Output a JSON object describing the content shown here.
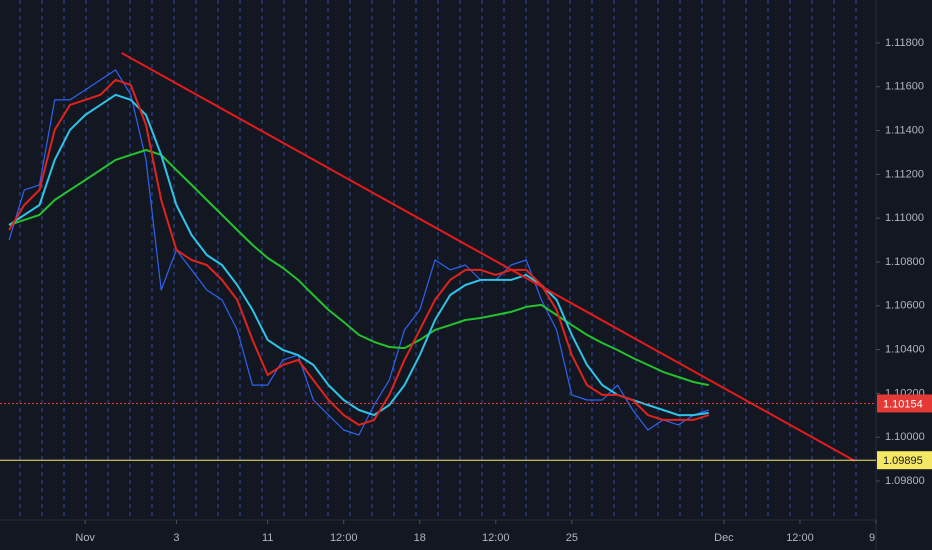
{
  "chart_data": {
    "type": "line",
    "x": [
      -2.5,
      -2,
      -1.5,
      -1,
      -0.5,
      0,
      0.5,
      1,
      1.5,
      2,
      2.5,
      3,
      3.5,
      4,
      4.5,
      5,
      5.5,
      6,
      6.5,
      7,
      7.5,
      8,
      8.5,
      9,
      9.5,
      10,
      10.5,
      11,
      11.5,
      12,
      12.5,
      13,
      13.5,
      14,
      14.5,
      15,
      15.5,
      16,
      16.5,
      17,
      17.5,
      18,
      18.5,
      19,
      19.5,
      20,
      20.5
    ],
    "series": [
      {
        "color": "#2f62f0",
        "values": [
          1.109,
          1.11129,
          1.11152,
          1.1154,
          1.1154,
          1.11585,
          1.11631,
          1.11677,
          1.11563,
          1.11266,
          1.10672,
          1.10855,
          1.10764,
          1.10672,
          1.10627,
          1.1049,
          1.10238,
          1.10238,
          1.10353,
          1.10375,
          1.1017,
          1.10101,
          1.10033,
          1.1001,
          1.10147,
          1.10261,
          1.1049,
          1.10581,
          1.10809,
          1.10764,
          1.10786,
          1.10718,
          1.10718,
          1.10786,
          1.10809,
          1.10627,
          1.1049,
          1.10193,
          1.1017,
          1.1017,
          1.10238,
          1.10124,
          1.10033,
          1.10079,
          1.10056,
          1.10101,
          1.10124
        ]
      },
      {
        "color": "#25c12e",
        "values": [
          1.10969,
          1.10992,
          1.11015,
          1.11083,
          1.11129,
          1.11174,
          1.1122,
          1.11266,
          1.11289,
          1.11311,
          1.11289,
          1.1122,
          1.11152,
          1.11083,
          1.11015,
          1.10946,
          1.10878,
          1.10818,
          1.10773,
          1.10718,
          1.10649,
          1.10581,
          1.10526,
          1.10467,
          1.10435,
          1.10412,
          1.10407,
          1.10444,
          1.1049,
          1.10512,
          1.10535,
          1.10544,
          1.10558,
          1.10572,
          1.10595,
          1.10604,
          1.10558,
          1.10512,
          1.10467,
          1.1043,
          1.10398,
          1.10362,
          1.1033,
          1.10298,
          1.10275,
          1.10252,
          1.10238
        ]
      },
      {
        "color": "#2ec4e8",
        "values": [
          1.10969,
          1.11015,
          1.1106,
          1.11266,
          1.11403,
          1.11471,
          1.11517,
          1.11563,
          1.1154,
          1.11471,
          1.11289,
          1.1106,
          1.10923,
          1.10832,
          1.10786,
          1.10695,
          1.10581,
          1.10444,
          1.10398,
          1.10375,
          1.1033,
          1.10238,
          1.1017,
          1.10124,
          1.10101,
          1.10147,
          1.10238,
          1.10375,
          1.10535,
          1.10649,
          1.10695,
          1.10718,
          1.10718,
          1.10718,
          1.10741,
          1.10695,
          1.10627,
          1.10467,
          1.1033,
          1.10238,
          1.10193,
          1.1017,
          1.10147,
          1.10124,
          1.10101,
          1.10101,
          1.10111
        ]
      },
      {
        "color": "#e0231c",
        "values": [
          1.10946,
          1.1106,
          1.11129,
          1.11403,
          1.11517,
          1.1154,
          1.11563,
          1.11631,
          1.11608,
          1.11426,
          1.11083,
          1.10855,
          1.10809,
          1.10786,
          1.10718,
          1.10627,
          1.10444,
          1.10284,
          1.1033,
          1.10353,
          1.10261,
          1.1017,
          1.10101,
          1.10056,
          1.10079,
          1.10193,
          1.10353,
          1.1049,
          1.10627,
          1.10718,
          1.10764,
          1.10764,
          1.10741,
          1.10764,
          1.10764,
          1.10695,
          1.10581,
          1.10375,
          1.10238,
          1.10193,
          1.10193,
          1.1017,
          1.10101,
          1.10079,
          1.10079,
          1.10079,
          1.10101
        ]
      }
    ],
    "trendline": {
      "x": [
        1.2,
        25.3
      ],
      "values": [
        1.11754,
        1.09892
      ],
      "color": "#e31b1b"
    },
    "price_lines": [
      {
        "value": 1.10154,
        "color": "#e53935",
        "style": "dotted"
      },
      {
        "value": 1.09895,
        "color": "#f5e663",
        "style": "solid"
      }
    ],
    "xlim": [
      -2.8,
      26
    ],
    "xticks": [
      {
        "value": 0,
        "label": "Nov"
      },
      3,
      {
        "value": 6,
        "label": "11"
      },
      {
        "value": 8.5,
        "label": "12:00"
      },
      {
        "value": 11,
        "label": "18"
      },
      {
        "value": 13.5,
        "label": "12:00"
      },
      {
        "value": 16,
        "label": "25"
      },
      {
        "value": 21,
        "label": "Dec"
      },
      {
        "value": 23.5,
        "label": "12:00"
      },
      {
        "value": 26,
        "label": "9"
      }
    ],
    "ylim": [
      1.09622,
      1.11996
    ],
    "yticks": [
      {
        "value": 1.098,
        "label": "1.09800"
      },
      {
        "value": 1.1,
        "label": "1.10000"
      },
      {
        "value": 1.102,
        "label": "1.10200"
      },
      {
        "value": 1.104,
        "label": "1.10400"
      },
      {
        "value": 1.106,
        "label": "1.10600"
      },
      {
        "value": 1.108,
        "label": "1.10800"
      },
      {
        "value": 1.11,
        "label": "1.11000"
      },
      {
        "value": 1.112,
        "label": "1.11200"
      },
      {
        "value": 1.114,
        "label": "1.11400"
      },
      {
        "value": 1.116,
        "label": "1.11600"
      },
      {
        "value": 1.118,
        "label": "1.11800"
      }
    ]
  }
}
